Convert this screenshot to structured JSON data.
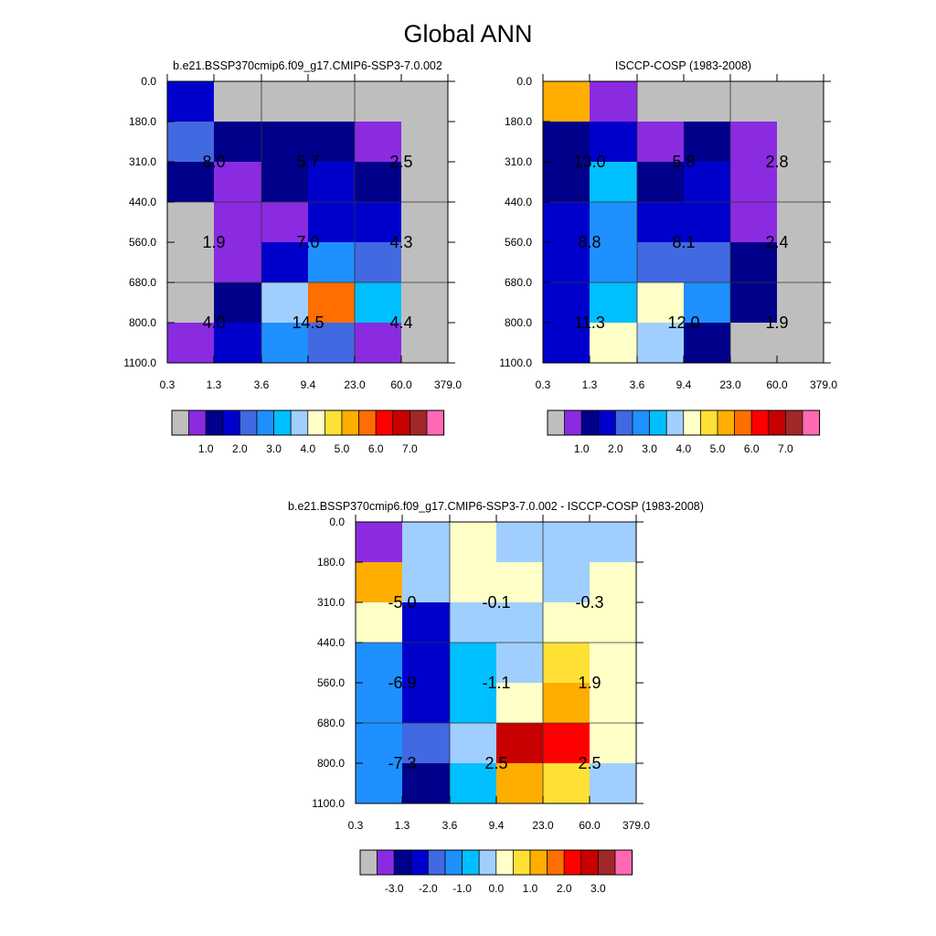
{
  "title": "Global ANN",
  "colors": {
    "missing": "#bebebe",
    "scale": [
      "#bebebe",
      "#8a2be2",
      "#00008b",
      "#0000cd",
      "#4169e1",
      "#1e90ff",
      "#00bfff",
      "#a0cfff",
      "#ffffc8",
      "#ffe135",
      "#ffae00",
      "#ff6e00",
      "#ff0000",
      "#c80000",
      "#a02828",
      "#ff69b4"
    ]
  },
  "chart_data": [
    {
      "type": "heatmap",
      "title": "b.e21.BSSP370cmip6.f09_g17.CMIP6-SSP3-7.0.002",
      "x_ticks": [
        "0.3",
        "1.3",
        "3.6",
        "9.4",
        "23.0",
        "60.0",
        "379.0"
      ],
      "y_ticks": [
        "0.0",
        "180.0",
        "310.0",
        "440.0",
        "560.0",
        "680.0",
        "800.0",
        "1100.0"
      ],
      "cell_color_index": [
        [
          3,
          0,
          0,
          0,
          0,
          0
        ],
        [
          4,
          2,
          2,
          2,
          1,
          0
        ],
        [
          2,
          1,
          2,
          3,
          2,
          0
        ],
        [
          0,
          1,
          1,
          3,
          3,
          0
        ],
        [
          0,
          1,
          3,
          5,
          4,
          0
        ],
        [
          0,
          2,
          7,
          11,
          6,
          0
        ],
        [
          1,
          3,
          5,
          4,
          1,
          0
        ]
      ],
      "annotations": [
        {
          "col": 1,
          "row": 2,
          "text": "8.0"
        },
        {
          "col": 3,
          "row": 2,
          "text": "5.7"
        },
        {
          "col": 5,
          "row": 2,
          "text": "2.5"
        },
        {
          "col": 1,
          "row": 4,
          "text": "1.9"
        },
        {
          "col": 3,
          "row": 4,
          "text": "7.0"
        },
        {
          "col": 5,
          "row": 4,
          "text": "4.3"
        },
        {
          "col": 1,
          "row": 6,
          "text": "4.0"
        },
        {
          "col": 3,
          "row": 6,
          "text": "14.5"
        },
        {
          "col": 5,
          "row": 6,
          "text": "4.4"
        }
      ],
      "legend": [
        "1.0",
        "2.0",
        "3.0",
        "4.0",
        "5.0",
        "6.0",
        "7.0"
      ]
    },
    {
      "type": "heatmap",
      "title": "ISCCP-COSP (1983-2008)",
      "x_ticks": [
        "0.3",
        "1.3",
        "3.6",
        "9.4",
        "23.0",
        "60.0",
        "379.0"
      ],
      "y_ticks": [
        "0.0",
        "180.0",
        "310.0",
        "440.0",
        "560.0",
        "680.0",
        "800.0",
        "1100.0"
      ],
      "cell_color_index": [
        [
          10,
          1,
          0,
          0,
          0,
          0
        ],
        [
          2,
          3,
          1,
          2,
          1,
          0
        ],
        [
          2,
          6,
          2,
          3,
          1,
          0
        ],
        [
          3,
          5,
          3,
          3,
          1,
          0
        ],
        [
          3,
          5,
          4,
          4,
          2,
          0
        ],
        [
          3,
          6,
          8,
          5,
          2,
          0
        ],
        [
          3,
          8,
          7,
          2,
          0,
          0
        ]
      ],
      "annotations": [
        {
          "col": 1,
          "row": 2,
          "text": "13.0"
        },
        {
          "col": 3,
          "row": 2,
          "text": "5.8"
        },
        {
          "col": 5,
          "row": 2,
          "text": "2.8"
        },
        {
          "col": 1,
          "row": 4,
          "text": "8.8"
        },
        {
          "col": 3,
          "row": 4,
          "text": "8.1"
        },
        {
          "col": 5,
          "row": 4,
          "text": "2.4"
        },
        {
          "col": 1,
          "row": 6,
          "text": "11.3"
        },
        {
          "col": 3,
          "row": 6,
          "text": "12.0"
        },
        {
          "col": 5,
          "row": 6,
          "text": "1.9"
        }
      ],
      "legend": [
        "1.0",
        "2.0",
        "3.0",
        "4.0",
        "5.0",
        "6.0",
        "7.0"
      ]
    },
    {
      "type": "heatmap",
      "title": "b.e21.BSSP370cmip6.f09_g17.CMIP6-SSP3-7.0.002 - ISCCP-COSP (1983-2008)",
      "x_ticks": [
        "0.3",
        "1.3",
        "3.6",
        "9.4",
        "23.0",
        "60.0",
        "379.0"
      ],
      "y_ticks": [
        "0.0",
        "180.0",
        "310.0",
        "440.0",
        "560.0",
        "680.0",
        "800.0",
        "1100.0"
      ],
      "cell_color_index": [
        [
          1,
          7,
          8,
          7,
          7,
          7
        ],
        [
          10,
          7,
          8,
          8,
          7,
          8
        ],
        [
          8,
          3,
          7,
          7,
          8,
          8
        ],
        [
          5,
          3,
          6,
          7,
          9,
          8
        ],
        [
          5,
          3,
          6,
          8,
          10,
          8
        ],
        [
          5,
          4,
          7,
          13,
          12,
          8
        ],
        [
          5,
          2,
          6,
          10,
          9,
          7
        ]
      ],
      "annotations": [
        {
          "col": 1,
          "row": 2,
          "text": "-5.0"
        },
        {
          "col": 3,
          "row": 2,
          "text": "-0.1"
        },
        {
          "col": 5,
          "row": 2,
          "text": "-0.3"
        },
        {
          "col": 1,
          "row": 4,
          "text": "-6.9"
        },
        {
          "col": 3,
          "row": 4,
          "text": "-1.1"
        },
        {
          "col": 5,
          "row": 4,
          "text": "1.9"
        },
        {
          "col": 1,
          "row": 6,
          "text": "-7.3"
        },
        {
          "col": 3,
          "row": 6,
          "text": "2.5"
        },
        {
          "col": 5,
          "row": 6,
          "text": "2.5"
        }
      ],
      "legend": [
        "-3.0",
        "-2.0",
        "-1.0",
        "0.0",
        "1.0",
        "2.0",
        "3.0"
      ]
    }
  ]
}
